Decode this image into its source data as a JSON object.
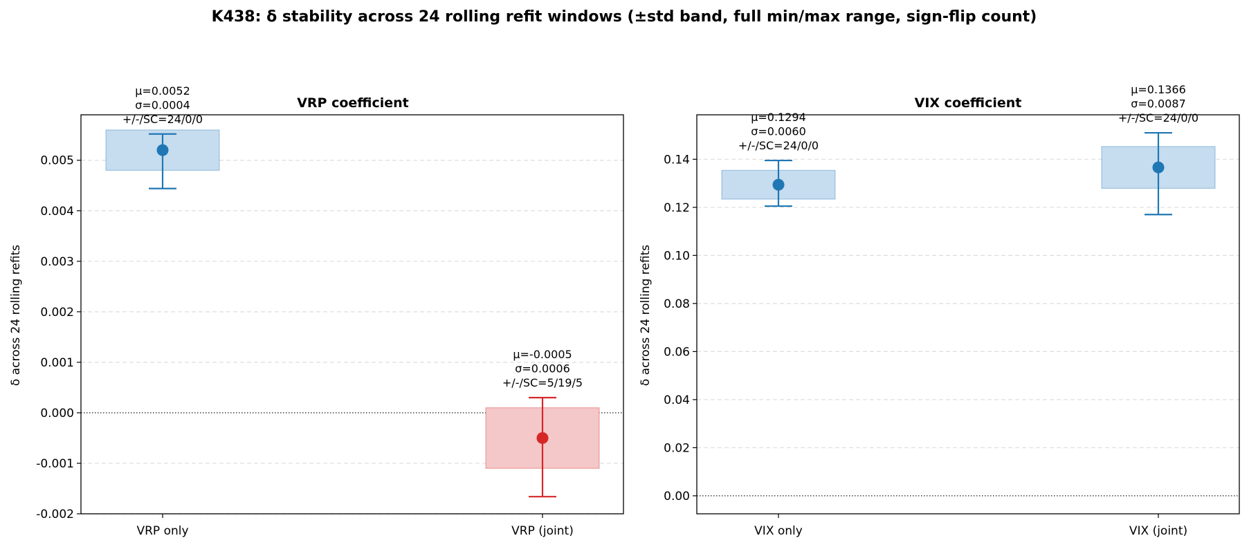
{
  "figure_title": "K438: δ stability across 24 rolling refit windows (±std band, full min/max range, sign-flip count)",
  "chart_data": [
    {
      "type": "errorbar",
      "title": "VRP coefficient",
      "ylabel": "δ across 24 rolling refits",
      "ylim": [
        -0.002,
        0.0059
      ],
      "yticks": [
        -0.002,
        -0.001,
        0.0,
        0.001,
        0.002,
        0.003,
        0.004,
        0.005
      ],
      "ytick_labels": [
        "-0.002",
        "-0.001",
        "0.000",
        "0.001",
        "0.002",
        "0.003",
        "0.004",
        "0.005"
      ],
      "grid": "y-dashed",
      "zero_line": true,
      "categories": [
        "VRP only",
        "VRP (joint)"
      ],
      "points": [
        {
          "label": "VRP only",
          "mean": 0.0052,
          "std": 0.0004,
          "min": 0.00444,
          "max": 0.00552,
          "color": "#1f77b4",
          "band": "#c6dcef",
          "annotation": [
            "μ=0.0052",
            "σ=0.0004",
            "+/-/SC=24/0/0"
          ]
        },
        {
          "label": "VRP (joint)",
          "mean": -0.0005,
          "std": 0.0006,
          "min": -0.00166,
          "max": 0.0003,
          "color": "#d62728",
          "band": "#f4c7c8",
          "annotation": [
            "μ=-0.0005",
            "σ=0.0006",
            "+/-/SC=5/19/5"
          ]
        }
      ]
    },
    {
      "type": "errorbar",
      "title": "VIX coefficient",
      "ylabel": "δ across 24 rolling refits",
      "ylim": [
        -0.0075,
        0.1585
      ],
      "yticks": [
        0.0,
        0.02,
        0.04,
        0.06,
        0.08,
        0.1,
        0.12,
        0.14
      ],
      "ytick_labels": [
        "0.00",
        "0.02",
        "0.04",
        "0.06",
        "0.08",
        "0.10",
        "0.12",
        "0.14"
      ],
      "grid": "y-dashed",
      "zero_line": true,
      "categories": [
        "VIX only",
        "VIX (joint)"
      ],
      "points": [
        {
          "label": "VIX only",
          "mean": 0.1294,
          "std": 0.006,
          "min": 0.1205,
          "max": 0.1395,
          "color": "#1f77b4",
          "band": "#c6dcef",
          "annotation": [
            "μ=0.1294",
            "σ=0.0060",
            "+/-/SC=24/0/0"
          ]
        },
        {
          "label": "VIX (joint)",
          "mean": 0.1366,
          "std": 0.0087,
          "min": 0.117,
          "max": 0.151,
          "color": "#1f77b4",
          "band": "#c6dcef",
          "annotation": [
            "μ=0.1366",
            "σ=0.0087",
            "+/-/SC=24/0/0"
          ]
        }
      ]
    }
  ]
}
